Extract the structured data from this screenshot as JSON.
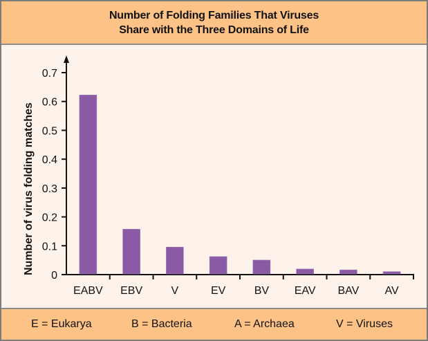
{
  "header": {
    "title_line1": "Number of Folding Families That Viruses",
    "title_line2": "Share with the Three Domains of Life"
  },
  "footer": {
    "legend": [
      {
        "label": "E = Eukarya"
      },
      {
        "label": "B = Bacteria"
      },
      {
        "label": "A = Archaea"
      },
      {
        "label": "V = Viruses"
      }
    ]
  },
  "colors": {
    "bar": "#8b5aa5",
    "background": "#fdf3ea",
    "header_footer": "#fcc286",
    "border": "#7b7b7b"
  },
  "chart_data": {
    "type": "bar",
    "title": "Number of Folding Families That Viruses Share with the Three Domains of Life",
    "xlabel": "",
    "ylabel": "Number of virus folding matches",
    "categories": [
      "EABV",
      "EBV",
      "V",
      "EV",
      "BV",
      "EAV",
      "BAV",
      "AV"
    ],
    "values": [
      0.62,
      0.155,
      0.093,
      0.06,
      0.048,
      0.017,
      0.014,
      0.008
    ],
    "ylim": [
      0,
      0.7
    ],
    "yticks": [
      "0",
      "0.1",
      "0.2",
      "0.3",
      "0.4",
      "0.5",
      "0.6",
      "0.7"
    ],
    "grid": false,
    "legend_position": "bottom",
    "legend": [
      "E = Eukarya",
      "B = Bacteria",
      "A = Archaea",
      "V = Viruses"
    ]
  }
}
